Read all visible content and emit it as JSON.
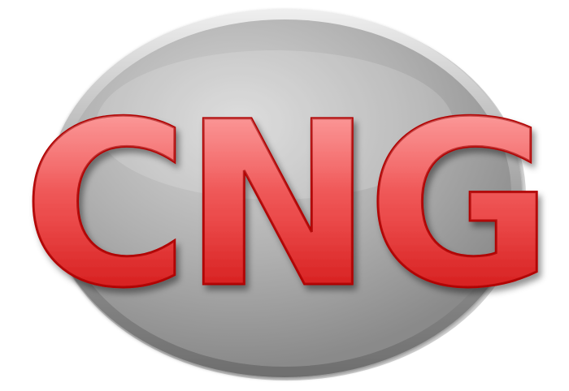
{
  "logo": {
    "text": "CNG",
    "colors": {
      "badge_light": "#d2d2d2",
      "badge_mid": "#b0b0b0",
      "badge_dark": "#7f7f7f",
      "letter_top": "#ff7b7b",
      "letter_mid": "#ea3d3d",
      "letter_bottom": "#c70000"
    }
  }
}
